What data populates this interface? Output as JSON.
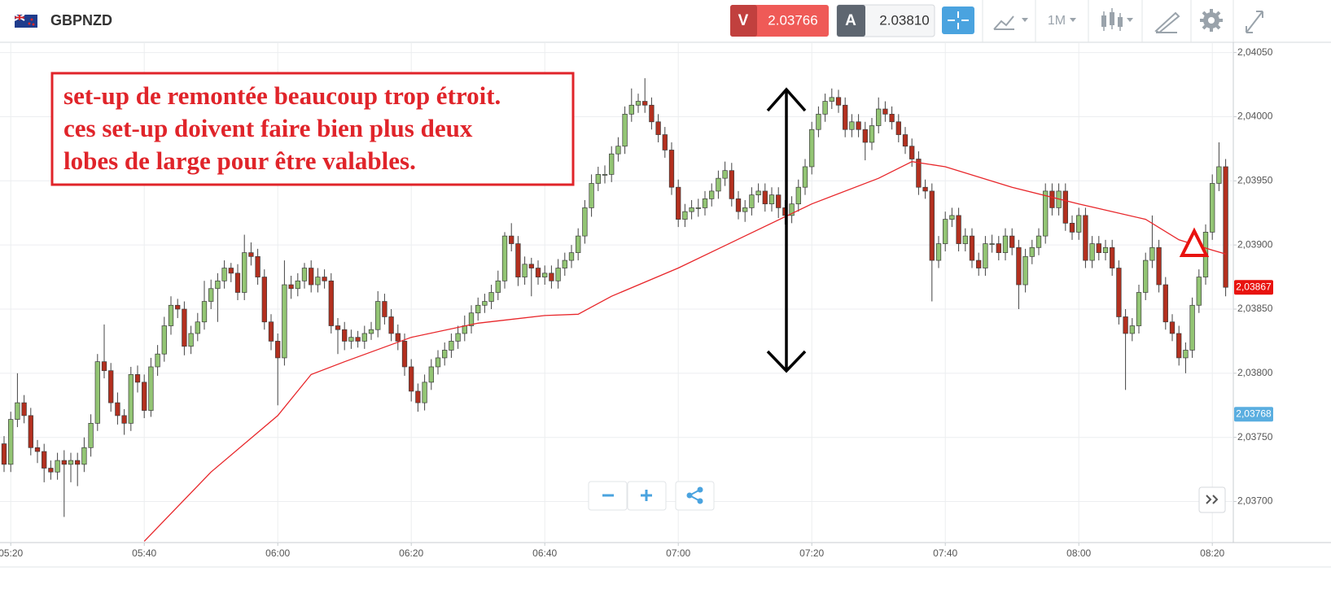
{
  "header": {
    "symbol": "GBPNZD",
    "sell_label": "V",
    "sell_price": "2.03766",
    "buy_label": "A",
    "buy_price": "2.03810",
    "timeframe": "1M"
  },
  "chart_data": {
    "type": "candlestick",
    "categories": [
      null,
      "05:20",
      null,
      null,
      null,
      null,
      null,
      null,
      null,
      null,
      null,
      null,
      null,
      null,
      null,
      null,
      null,
      null,
      null,
      null,
      null,
      "05:40",
      null,
      null,
      null,
      null,
      null,
      null,
      null,
      null,
      null,
      null,
      null,
      null,
      null,
      null,
      null,
      null,
      null,
      null,
      null,
      "06:00",
      null,
      null,
      null,
      null,
      null,
      null,
      null,
      null,
      null,
      null,
      null,
      null,
      null,
      null,
      null,
      null,
      null,
      null,
      null,
      "06:20",
      null,
      null,
      null,
      null,
      null,
      null,
      null,
      null,
      null,
      null,
      null,
      null,
      null,
      null,
      null,
      null,
      null,
      null,
      null,
      "06:40",
      null,
      null,
      null,
      null,
      null,
      null,
      null,
      null,
      null,
      null,
      null,
      null,
      null,
      null,
      null,
      null,
      null,
      null,
      null,
      "07:00",
      null,
      null,
      null,
      null,
      null,
      null,
      null,
      null,
      null,
      null,
      null,
      null,
      null,
      null,
      null,
      null,
      null,
      null,
      null,
      "07:20",
      null,
      null,
      null,
      null,
      null,
      null,
      null,
      null,
      null,
      null,
      null,
      null,
      null,
      null,
      null,
      null,
      null,
      null,
      null,
      "07:40",
      null,
      null,
      null,
      null,
      null,
      null,
      null,
      null,
      null,
      null,
      null,
      null,
      null,
      null,
      null,
      null,
      null,
      null,
      null,
      "08:00",
      null,
      null,
      null,
      null,
      null,
      null,
      null,
      null,
      null,
      null,
      null,
      null,
      null,
      null,
      null,
      null,
      null,
      null,
      null,
      "08:20",
      null,
      null
    ],
    "open": [
      2.03745,
      2.03729,
      2.03764,
      2.03777,
      2.03767,
      2.03742,
      2.03739,
      2.03726,
      2.03723,
      2.03732,
      2.03729,
      2.03732,
      2.03729,
      2.03742,
      2.03761,
      2.03809,
      2.03802,
      2.03777,
      2.03767,
      2.03761,
      2.03799,
      2.03793,
      2.03771,
      2.03805,
      2.03815,
      2.03837,
      2.03853,
      2.0385,
      2.03821,
      2.03831,
      2.0384,
      2.03856,
      2.03866,
      2.03872,
      2.03882,
      2.03878,
      2.03863,
      2.03894,
      2.03891,
      2.03875,
      2.0384,
      2.03825,
      2.03812,
      2.03869,
      2.03866,
      2.03872,
      2.03882,
      2.03869,
      2.03875,
      2.03872,
      2.03837,
      2.03834,
      2.03825,
      2.03828,
      2.03825,
      2.03831,
      2.03834,
      2.03856,
      2.03844,
      2.03831,
      2.03825,
      2.03805,
      2.03786,
      2.03777,
      2.03793,
      2.03805,
      2.03812,
      2.03818,
      2.03825,
      2.03831,
      2.03837,
      2.03847,
      2.03853,
      2.03856,
      2.03863,
      2.03872,
      2.03907,
      2.03901,
      2.03875,
      2.03885,
      2.03882,
      2.03875,
      2.03878,
      2.03872,
      2.03882,
      2.03888,
      2.03894,
      2.03907,
      2.03929,
      2.03948,
      2.03955,
      2.03955,
      2.03971,
      2.03977,
      2.04002,
      2.04009,
      2.04012,
      2.04009,
      2.03996,
      2.03986,
      2.03974,
      2.03945,
      2.0392,
      2.03926,
      2.03929,
      2.03929,
      2.03936,
      2.03942,
      2.03952,
      2.03958,
      2.03936,
      2.03926,
      2.03929,
      2.03939,
      2.03942,
      2.03932,
      2.03939,
      2.03929,
      2.03923,
      2.03932,
      2.03945,
      2.03961,
      2.0399,
      2.04002,
      2.04012,
      2.04015,
      2.04009,
      2.0399,
      2.03996,
      2.0399,
      2.0398,
      2.03993,
      2.04006,
      2.04002,
      2.03996,
      2.03986,
      2.03977,
      2.03967,
      2.03945,
      2.03942,
      2.03888,
      2.03901,
      2.0392,
      2.03923,
      2.03901,
      2.03907,
      2.03888,
      2.03882,
      2.03901,
      2.03901,
      2.03894,
      2.03907,
      2.03898,
      2.03869,
      2.03891,
      2.03898,
      2.03907,
      2.03942,
      2.03929,
      2.03942,
      2.03917,
      2.0391,
      2.03923,
      2.03888,
      2.03901,
      2.03894,
      2.03898,
      2.03882,
      2.03844,
      2.03831,
      2.03837,
      2.03863,
      2.03888,
      2.03898,
      2.03869,
      2.0384,
      2.03831,
      2.03812,
      2.03818,
      2.03853,
      2.03875,
      2.0391,
      2.03948,
      2.03961
    ],
    "high": [
      2.03751,
      2.0377,
      2.038,
      2.03783,
      2.03773,
      2.03748,
      2.03745,
      2.03732,
      2.03738,
      2.0374,
      2.03738,
      2.03738,
      2.0375,
      2.03768,
      2.03815,
      2.03838,
      2.03808,
      2.03785,
      2.03772,
      2.03805,
      2.03806,
      2.03799,
      2.03812,
      2.03822,
      2.03844,
      2.0386,
      2.03858,
      2.03856,
      2.03837,
      2.03847,
      2.03872,
      2.03873,
      2.03878,
      2.03888,
      2.03886,
      2.03885,
      2.03908,
      2.03902,
      2.03897,
      2.03881,
      2.03846,
      2.03831,
      2.03888,
      2.03876,
      2.03878,
      2.03886,
      2.03888,
      2.03882,
      2.03881,
      2.03878,
      2.03843,
      2.0384,
      2.03834,
      2.03833,
      2.03837,
      2.0384,
      2.03864,
      2.03862,
      2.0385,
      2.03838,
      2.03831,
      2.03811,
      2.03792,
      2.03799,
      2.03811,
      2.03818,
      2.03824,
      2.03831,
      2.03837,
      2.03845,
      2.03853,
      2.03859,
      2.03862,
      2.03869,
      2.0388,
      2.0391,
      2.03917,
      2.03907,
      2.03891,
      2.0389,
      2.03888,
      2.03884,
      2.03884,
      2.03889,
      2.03894,
      2.039,
      2.03913,
      2.03935,
      2.03955,
      2.03961,
      2.03962,
      2.03977,
      2.03984,
      2.04008,
      2.04022,
      2.04018,
      2.0403,
      2.04015,
      2.04002,
      2.03992,
      2.0398,
      2.03951,
      2.03932,
      2.03935,
      2.03936,
      2.03942,
      2.03948,
      2.03958,
      2.03965,
      2.03964,
      2.03942,
      2.03935,
      2.03945,
      2.03948,
      2.03948,
      2.03945,
      2.03945,
      2.03935,
      2.03938,
      2.03951,
      2.03967,
      2.03996,
      2.04008,
      2.04018,
      2.04022,
      2.04021,
      2.04015,
      2.04002,
      2.04002,
      2.03996,
      2.03999,
      2.04015,
      2.04012,
      2.04008,
      2.04002,
      2.03992,
      2.03983,
      2.03973,
      2.03951,
      2.03948,
      2.03907,
      2.03926,
      2.03929,
      2.03929,
      2.03913,
      2.03913,
      2.03894,
      2.03907,
      2.03908,
      2.03907,
      2.03913,
      2.03913,
      2.03904,
      2.03897,
      2.03904,
      2.03913,
      2.03948,
      2.03948,
      2.03948,
      2.03948,
      2.03923,
      2.03929,
      2.03929,
      2.03907,
      2.03907,
      2.03904,
      2.03904,
      2.03888,
      2.0385,
      2.03843,
      2.03869,
      2.03894,
      2.03923,
      2.03904,
      2.03875,
      2.03846,
      2.03837,
      2.03824,
      2.03859,
      2.03881,
      2.03916,
      2.03955,
      2.0398,
      2.03967
    ],
    "low": [
      2.03723,
      2.03723,
      2.03758,
      2.03761,
      2.03736,
      2.0373,
      2.03715,
      2.03717,
      2.03717,
      2.03688,
      2.03715,
      2.03712,
      2.03723,
      2.03735,
      2.03755,
      2.03796,
      2.0377,
      2.0376,
      2.03752,
      2.03755,
      2.03785,
      2.03765,
      2.03766,
      2.03798,
      2.03809,
      2.0383,
      2.03843,
      2.03814,
      2.03815,
      2.03825,
      2.03834,
      2.0385,
      2.0384,
      2.03866,
      2.03871,
      2.03857,
      2.03857,
      2.03884,
      2.03869,
      2.03834,
      2.03818,
      2.03775,
      2.03806,
      2.03858,
      2.0386,
      2.03866,
      2.03863,
      2.03863,
      2.03866,
      2.03831,
      2.03815,
      2.03818,
      2.03819,
      2.0382,
      2.03819,
      2.03826,
      2.03828,
      2.03838,
      2.03825,
      2.03818,
      2.03798,
      2.03778,
      2.0377,
      2.03771,
      2.03787,
      2.03799,
      2.03806,
      2.03812,
      2.03819,
      2.03825,
      2.03831,
      2.03841,
      2.03847,
      2.0385,
      2.03857,
      2.03866,
      2.03895,
      2.03868,
      2.03869,
      2.0386,
      2.03869,
      2.03869,
      2.03866,
      2.03866,
      2.03876,
      2.03882,
      2.03888,
      2.03901,
      2.03922,
      2.03942,
      2.03948,
      2.03949,
      2.03965,
      2.03971,
      2.03996,
      2.04003,
      2.04003,
      2.0399,
      2.0398,
      2.03968,
      2.03939,
      2.03914,
      2.03914,
      2.0392,
      2.03922,
      2.03923,
      2.0393,
      2.03936,
      2.03946,
      2.0393,
      2.0392,
      2.03918,
      2.03923,
      2.03933,
      2.03926,
      2.03926,
      2.03921,
      2.03916,
      2.03917,
      2.03926,
      2.03939,
      2.03955,
      2.03984,
      2.03996,
      2.04006,
      2.04003,
      2.03984,
      2.03984,
      2.03984,
      2.03966,
      2.03974,
      2.03987,
      2.03996,
      2.0399,
      2.0398,
      2.03971,
      2.03961,
      2.03939,
      2.03936,
      2.03856,
      2.03882,
      2.03895,
      2.03914,
      2.03895,
      2.03895,
      2.03882,
      2.03876,
      2.03876,
      2.03894,
      2.03888,
      2.03888,
      2.03892,
      2.0385,
      2.03863,
      2.03885,
      2.03892,
      2.03901,
      2.03923,
      2.03923,
      2.03911,
      2.03904,
      2.03904,
      2.03882,
      2.03882,
      2.03888,
      2.03888,
      2.03876,
      2.03838,
      2.03787,
      2.03825,
      2.03831,
      2.03857,
      2.03882,
      2.03863,
      2.03834,
      2.03825,
      2.03806,
      2.038,
      2.03812,
      2.03847,
      2.03869,
      2.03904,
      2.03942,
      2.0386
    ],
    "close": [
      2.03729,
      2.03764,
      2.03777,
      2.03767,
      2.03742,
      2.03739,
      2.03726,
      2.03723,
      2.03732,
      2.03729,
      2.03732,
      2.03729,
      2.03742,
      2.03761,
      2.03809,
      2.03802,
      2.03777,
      2.03767,
      2.03761,
      2.03799,
      2.03793,
      2.03771,
      2.03805,
      2.03815,
      2.03837,
      2.03853,
      2.0385,
      2.03821,
      2.03831,
      2.0384,
      2.03856,
      2.03866,
      2.03872,
      2.03882,
      2.03878,
      2.03863,
      2.03894,
      2.03891,
      2.03875,
      2.0384,
      2.03825,
      2.03812,
      2.03869,
      2.03866,
      2.03872,
      2.03882,
      2.03869,
      2.03875,
      2.03872,
      2.03837,
      2.03834,
      2.03825,
      2.03828,
      2.03825,
      2.03831,
      2.03834,
      2.03856,
      2.03844,
      2.03831,
      2.03825,
      2.03805,
      2.03786,
      2.03777,
      2.03793,
      2.03805,
      2.03812,
      2.03818,
      2.03825,
      2.03831,
      2.03837,
      2.03847,
      2.03853,
      2.03856,
      2.03863,
      2.03872,
      2.03907,
      2.03901,
      2.03875,
      2.03885,
      2.03882,
      2.03875,
      2.03878,
      2.03872,
      2.03882,
      2.03888,
      2.03894,
      2.03907,
      2.03929,
      2.03948,
      2.03955,
      2.03955,
      2.03971,
      2.03977,
      2.04002,
      2.04009,
      2.04012,
      2.04009,
      2.03996,
      2.03986,
      2.03974,
      2.03945,
      2.0392,
      2.03926,
      2.03929,
      2.03929,
      2.03936,
      2.03942,
      2.03952,
      2.03958,
      2.03936,
      2.03926,
      2.03929,
      2.03939,
      2.03942,
      2.03932,
      2.03939,
      2.03929,
      2.03923,
      2.03932,
      2.03945,
      2.03961,
      2.0399,
      2.04002,
      2.04012,
      2.04015,
      2.04009,
      2.0399,
      2.03996,
      2.0399,
      2.0398,
      2.03993,
      2.04006,
      2.04002,
      2.03996,
      2.03986,
      2.03977,
      2.03967,
      2.03945,
      2.03942,
      2.03888,
      2.03901,
      2.0392,
      2.03923,
      2.03901,
      2.03907,
      2.03888,
      2.03882,
      2.03901,
      2.03901,
      2.03894,
      2.03907,
      2.03898,
      2.03869,
      2.03891,
      2.03898,
      2.03907,
      2.03942,
      2.03929,
      2.03942,
      2.03917,
      2.0391,
      2.03923,
      2.03888,
      2.03901,
      2.03894,
      2.03898,
      2.03882,
      2.03844,
      2.03831,
      2.03837,
      2.03863,
      2.03888,
      2.03898,
      2.03869,
      2.0384,
      2.03831,
      2.03812,
      2.03818,
      2.03853,
      2.03875,
      2.0391,
      2.03948,
      2.03961,
      2.03867
    ],
    "up_color": "#93c574",
    "down_color": "#b3301f",
    "moving_average": {
      "color": "#e8262a",
      "x": [
        "05:40",
        "05:50",
        "06:00",
        "06:05",
        "06:10",
        "06:20",
        "06:30",
        "06:40",
        "06:45",
        "06:50",
        "07:00",
        "07:10",
        "07:20",
        "07:30",
        "07:35",
        "07:40",
        "07:50",
        "08:00",
        "08:10",
        "08:15",
        "08:20",
        "08:22"
      ],
      "values": [
        2.03669,
        2.03723,
        2.03767,
        2.03799,
        2.03809,
        2.03828,
        2.03839,
        2.03845,
        2.03846,
        2.0386,
        2.03882,
        2.03907,
        2.03932,
        2.03952,
        2.03965,
        2.03961,
        2.03945,
        2.03932,
        2.0392,
        2.03904,
        2.03896,
        2.03893
      ]
    },
    "ylim": [
      2.03668,
      2.04058
    ],
    "yticks": [
      {
        "value": 2.037,
        "label": "2,03700"
      },
      {
        "value": 2.0375,
        "label": "2,03750"
      },
      {
        "value": 2.038,
        "label": "2,03800"
      },
      {
        "value": 2.0385,
        "label": "2,03850"
      },
      {
        "value": 2.039,
        "label": "2,03900"
      },
      {
        "value": 2.0395,
        "label": "2,03950"
      },
      {
        "value": 2.04,
        "label": "2,04000"
      },
      {
        "value": 2.0405,
        "label": "2,04050"
      }
    ],
    "grid": true,
    "last_price": {
      "value": 2.03867,
      "label": "2,03867",
      "color": "#e8130f"
    },
    "marker_price": {
      "value": 2.03768,
      "label": "2,03768",
      "color": "#5aaee0"
    },
    "annotation": [
      "set-up de remontée beaucoup trop étroit.",
      "ces set-up doivent faire bien plus deux",
      "lobes de large pour être valables."
    ]
  }
}
